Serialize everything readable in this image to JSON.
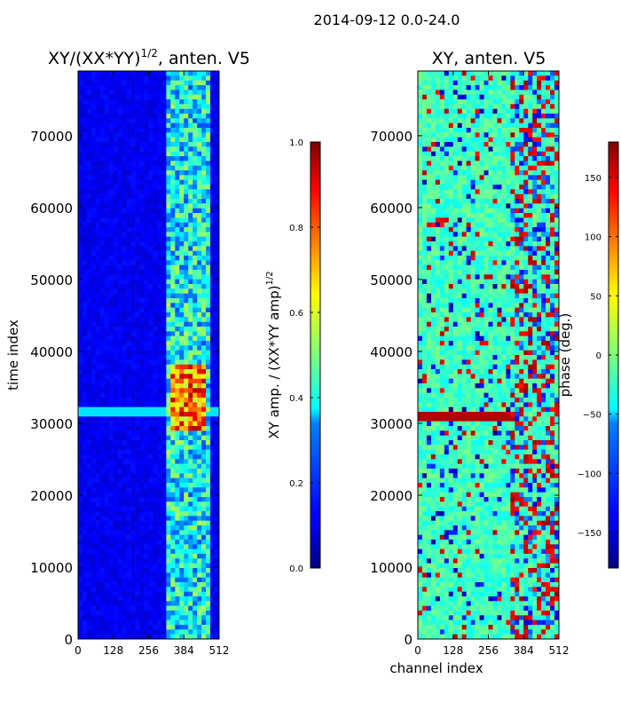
{
  "figure": {
    "suptitle": "2014-09-12 0.0-24.0"
  },
  "chart_data": [
    {
      "type": "heatmap",
      "title_main": "XY/(XX*YY)",
      "title_sup": "1/2",
      "title_tail": ", anten. V5",
      "ylabel": "time index",
      "xlabel": "",
      "xlim": [
        0,
        512
      ],
      "ylim": [
        0,
        79000
      ],
      "xticks": [
        0,
        128,
        256,
        384,
        512
      ],
      "yticks": [
        0,
        10000,
        20000,
        30000,
        40000,
        50000,
        60000,
        70000
      ],
      "colorbar": {
        "label_main": "XY amp. / (XX*YY amp)",
        "label_sup": "1/2",
        "range": [
          0,
          1.0
        ],
        "ticks": [
          0.0,
          0.2,
          0.4,
          0.6,
          0.8,
          1.0
        ],
        "tick_labels": [
          "0.0",
          "0.2",
          "0.4",
          "0.6",
          "0.8",
          "1.0"
        ],
        "colormap": "jet"
      },
      "features": [
        {
          "description": "high amplitude band",
          "channel_range": [
            330,
            470
          ],
          "time_range": [
            29000,
            38500
          ],
          "value": 0.75
        },
        {
          "description": "bright horizontal streak",
          "channel_range": [
            0,
            512
          ],
          "time": 31500,
          "value": 0.35
        }
      ]
    },
    {
      "type": "heatmap",
      "title": "XY, anten. V5",
      "xlabel": "channel index",
      "ylabel": "",
      "xlim": [
        0,
        512
      ],
      "ylim": [
        0,
        79000
      ],
      "xticks": [
        0,
        128,
        256,
        384,
        512
      ],
      "yticks": [
        0,
        10000,
        20000,
        30000,
        40000,
        50000,
        60000,
        70000
      ],
      "colorbar": {
        "label": "phase (deg.)",
        "range": [
          -180,
          180
        ],
        "ticks": [
          -150,
          -100,
          -50,
          0,
          50,
          100,
          150
        ],
        "tick_labels": [
          "−150",
          "−100",
          "−50",
          "0",
          "50",
          "100",
          "150"
        ],
        "colormap": "jet"
      },
      "features": [
        {
          "description": "strong red phase streak",
          "channel_range": [
            0,
            330
          ],
          "time": 31000,
          "value": 170
        }
      ]
    }
  ]
}
